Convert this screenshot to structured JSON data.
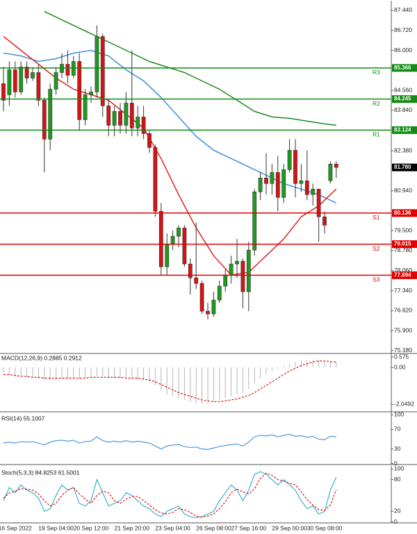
{
  "chart_data": [
    {
      "type": "candlestick",
      "categories": [
        null,
        null,
        "16 Sep 2022",
        null,
        null,
        null,
        null,
        null,
        null,
        "19 Sep 04:00",
        null,
        null,
        null,
        null,
        null,
        "20 Sep 12:00",
        null,
        null,
        null,
        null,
        null,
        null,
        "21 Sep 20:00",
        null,
        null,
        null,
        null,
        null,
        null,
        "23 Sep 04:00",
        null,
        null,
        null,
        null,
        null,
        null,
        "26 Sep 08:00",
        null,
        null,
        null,
        null,
        null,
        "27 Sep 16:00",
        null,
        null,
        null,
        null,
        null,
        null,
        "29 Sep 00:00",
        null,
        null,
        null,
        null,
        null,
        "30 Sep 08:00",
        null,
        null
      ],
      "open": [
        84.8,
        84.4,
        85.3,
        84.5,
        85.4,
        85.0,
        85.2,
        84.2,
        82.8,
        84.6,
        85.2,
        85.5,
        85.1,
        85.6,
        83.5,
        84.4,
        84.5,
        86.5,
        84.0,
        83.3,
        83.8,
        83.3,
        84.1,
        83.2,
        83.6,
        83.0,
        82.5,
        80.2,
        78.2,
        79.0,
        79.3,
        79.6,
        78.3,
        77.8,
        77.6,
        76.6,
        76.5,
        77.0,
        77.5,
        77.9,
        78.3,
        78.4,
        77.3,
        78.8,
        80.9,
        81.4,
        81.2,
        81.6,
        80.7,
        81.7,
        82.4,
        81.2,
        81.3,
        80.8,
        81.0,
        80.0,
        81.3,
        81.9
      ],
      "high": [
        85.4,
        85.6,
        85.6,
        85.6,
        85.6,
        85.4,
        85.5,
        84.3,
        84.8,
        85.4,
        85.9,
        86.0,
        85.8,
        85.9,
        84.6,
        84.7,
        86.9,
        86.6,
        84.2,
        84.0,
        84.1,
        84.5,
        86.0,
        84.0,
        84.0,
        83.1,
        82.6,
        80.5,
        79.4,
        79.5,
        79.7,
        79.7,
        78.5,
        79.8,
        77.7,
        76.9,
        77.3,
        77.7,
        78.1,
        78.6,
        79.2,
        78.5,
        79.1,
        81.0,
        81.6,
        82.3,
        81.9,
        82.2,
        81.9,
        82.8,
        82.8,
        81.9,
        82.4,
        81.2,
        81.0,
        80.2,
        82.0,
        82.0
      ],
      "low": [
        83.8,
        84.0,
        84.3,
        84.4,
        84.8,
        84.9,
        84.0,
        81.6,
        82.4,
        84.4,
        85.0,
        84.8,
        85.0,
        83.1,
        83.3,
        84.1,
        84.3,
        83.6,
        82.9,
        82.9,
        83.0,
        83.0,
        82.9,
        82.9,
        82.8,
        82.3,
        80.0,
        77.9,
        77.9,
        78.8,
        78.9,
        78.2,
        77.2,
        77.4,
        76.5,
        76.3,
        76.4,
        76.9,
        77.3,
        77.6,
        77.8,
        76.7,
        76.6,
        78.6,
        80.6,
        80.8,
        80.8,
        80.2,
        80.5,
        81.6,
        80.7,
        80.9,
        80.6,
        80.4,
        79.1,
        79.4,
        81.2,
        81.4
      ],
      "close": [
        84.2,
        85.3,
        84.5,
        85.4,
        85.0,
        85.2,
        84.2,
        82.8,
        84.6,
        85.2,
        85.5,
        85.1,
        85.6,
        83.5,
        84.4,
        84.5,
        86.5,
        84.0,
        83.3,
        83.8,
        83.3,
        84.1,
        83.2,
        83.6,
        83.0,
        82.5,
        80.2,
        78.2,
        79.0,
        79.3,
        79.6,
        78.3,
        77.8,
        77.6,
        76.6,
        76.5,
        77.0,
        77.5,
        77.9,
        78.3,
        78.4,
        77.3,
        78.8,
        80.9,
        81.4,
        81.2,
        81.6,
        80.7,
        81.7,
        82.4,
        81.2,
        81.3,
        80.8,
        81.0,
        80.0,
        79.7,
        81.9,
        81.78
      ],
      "up_color": "#1f9a1f",
      "down_color": "#d41414",
      "ylim": [
        75.1,
        87.69
      ],
      "yticks": [
        {
          "value": 87.44,
          "label": "87.440"
        },
        {
          "value": 86.72,
          "label": "86.720"
        },
        {
          "value": 86.0,
          "label": "86.000"
        },
        {
          "value": 84.56,
          "label": "84.560"
        },
        {
          "value": 83.84,
          "label": "83.840"
        },
        {
          "value": 82.38,
          "label": "82.380"
        },
        {
          "value": 80.94,
          "label": "80.940"
        },
        {
          "value": 79.5,
          "label": "79.500"
        },
        {
          "value": 78.78,
          "label": "78.780"
        },
        {
          "value": 78.06,
          "label": "78.060"
        },
        {
          "value": 77.34,
          "label": "77.340"
        },
        {
          "value": 76.62,
          "label": "76.620"
        },
        {
          "value": 75.9,
          "label": "75.900"
        },
        {
          "value": 75.18,
          "label": "75.180"
        }
      ],
      "levels": [
        {
          "name": "R3",
          "value": 85.366,
          "color": "#138a13"
        },
        {
          "name": "R2",
          "value": 84.245,
          "color": "#138a13"
        },
        {
          "name": "R1",
          "value": 83.124,
          "color": "#138a13"
        },
        {
          "name": "S1",
          "value": 80.136,
          "color": "#e00000"
        },
        {
          "name": "S2",
          "value": 79.015,
          "color": "#e00000"
        },
        {
          "name": "S3",
          "value": 77.894,
          "color": "#e00000"
        }
      ],
      "last": {
        "value": 81.78,
        "label": "81.780",
        "color": "#000000"
      },
      "moving_averages": [
        {
          "color": "#1a8a1a",
          "x": [
            7,
            10,
            13,
            16,
            19,
            22,
            25,
            28,
            31,
            34,
            37,
            40,
            43,
            46,
            49,
            52,
            55,
            57
          ],
          "values": [
            87.4,
            87.1,
            86.8,
            86.5,
            86.2,
            85.9,
            85.6,
            85.4,
            85.2,
            84.9,
            84.6,
            84.2,
            83.8,
            83.6,
            83.55,
            83.45,
            83.35,
            83.3
          ]
        },
        {
          "color": "#3a8fe0",
          "x": [
            0,
            3,
            6,
            9,
            12,
            15,
            18,
            21,
            24,
            27,
            30,
            33,
            36,
            39,
            42,
            45,
            48,
            51,
            54,
            57
          ],
          "values": [
            85.9,
            85.8,
            85.6,
            85.7,
            85.9,
            86.0,
            85.8,
            85.3,
            84.9,
            84.3,
            83.6,
            82.9,
            82.4,
            82.1,
            81.8,
            81.5,
            81.2,
            81.0,
            80.8,
            80.5
          ]
        },
        {
          "color": "#e02020",
          "x": [
            0,
            3,
            6,
            9,
            12,
            15,
            18,
            21,
            24,
            27,
            30,
            33,
            36,
            39,
            42,
            45,
            48,
            51,
            54,
            57
          ],
          "values": [
            86.5,
            86.0,
            85.5,
            85.0,
            84.6,
            84.4,
            84.2,
            83.7,
            83.2,
            82.1,
            80.8,
            79.6,
            78.6,
            77.9,
            78.0,
            78.6,
            79.2,
            80.0,
            80.4,
            81.0
          ]
        }
      ]
    },
    {
      "type": "indicator",
      "title": "MACD(12,26,9) 0.2885 0.2912",
      "ylim": [
        -2.42,
        0.73
      ],
      "yticks": [
        0.575,
        {
          "value": 0,
          "label": "0.00"
        },
        -2.0492
      ],
      "series": [
        {
          "kind": "bar",
          "color": "#b4b4b4",
          "values": [
            -0.3,
            -0.4,
            -0.5,
            -0.5,
            -0.6,
            -0.6,
            -0.6,
            -0.7,
            -0.7,
            -0.7,
            -0.6,
            -0.6,
            -0.6,
            -0.6,
            -0.6,
            -0.5,
            -0.5,
            -0.5,
            -0.6,
            -0.6,
            -0.6,
            -0.6,
            -0.6,
            -0.7,
            -0.7,
            -0.8,
            -1.0,
            -1.3,
            -1.5,
            -1.6,
            -1.7,
            -1.8,
            -1.9,
            -2.0,
            -2.0,
            -2.0,
            -1.9,
            -1.8,
            -1.7,
            -1.6,
            -1.5,
            -1.4,
            -1.2,
            -0.9,
            -0.6,
            -0.4,
            -0.2,
            -0.1,
            0.1,
            0.2,
            0.3,
            0.4,
            0.4,
            0.4,
            0.4,
            0.3,
            0.3,
            0.2885
          ]
        },
        {
          "kind": "line",
          "dash": true,
          "color": "#e00000",
          "values": [
            -0.4,
            -0.4,
            -0.45,
            -0.5,
            -0.5,
            -0.55,
            -0.55,
            -0.6,
            -0.6,
            -0.6,
            -0.6,
            -0.6,
            -0.6,
            -0.6,
            -0.6,
            -0.55,
            -0.55,
            -0.55,
            -0.55,
            -0.55,
            -0.55,
            -0.6,
            -0.6,
            -0.6,
            -0.65,
            -0.7,
            -0.8,
            -0.95,
            -1.1,
            -1.25,
            -1.4,
            -1.5,
            -1.6,
            -1.7,
            -1.8,
            -1.85,
            -1.9,
            -1.9,
            -1.85,
            -1.8,
            -1.75,
            -1.65,
            -1.55,
            -1.4,
            -1.2,
            -1.0,
            -0.8,
            -0.6,
            -0.4,
            -0.2,
            -0.05,
            0.1,
            0.2,
            0.3,
            0.35,
            0.35,
            0.32,
            0.2912
          ]
        }
      ]
    },
    {
      "type": "indicator",
      "title": "RSI(14) 55.1007",
      "ylim": [
        -0.5,
        100.5
      ],
      "yticks": [
        100,
        70,
        30,
        0
      ],
      "series": [
        {
          "kind": "line",
          "color": "#3a8fd9",
          "values": [
            42,
            44,
            42,
            45,
            44,
            45,
            42,
            38,
            44,
            47,
            48,
            46,
            48,
            42,
            45,
            46,
            55,
            47,
            44,
            46,
            44,
            47,
            44,
            46,
            44,
            42,
            36,
            30,
            36,
            38,
            39,
            35,
            33,
            34,
            30,
            29,
            32,
            35,
            37,
            39,
            40,
            36,
            44,
            55,
            58,
            57,
            59,
            55,
            58,
            60,
            56,
            57,
            54,
            56,
            50,
            49,
            56,
            55.1007
          ]
        }
      ]
    },
    {
      "type": "indicator",
      "title": "Stoch(5,3,3) 84.8253 61.5001",
      "ylim": [
        -0.5,
        100.5
      ],
      "yticks": [
        100,
        80,
        20,
        0
      ],
      "series": [
        {
          "kind": "line",
          "color": "#22aacc",
          "values": [
            40,
            65,
            55,
            70,
            60,
            55,
            45,
            20,
            25,
            50,
            70,
            60,
            65,
            35,
            30,
            40,
            80,
            55,
            30,
            35,
            40,
            55,
            50,
            40,
            30,
            25,
            15,
            10,
            20,
            25,
            30,
            15,
            10,
            8,
            10,
            15,
            20,
            40,
            55,
            70,
            60,
            40,
            60,
            90,
            95,
            90,
            80,
            70,
            80,
            70,
            60,
            40,
            25,
            30,
            15,
            20,
            60,
            84.8253
          ]
        },
        {
          "kind": "line",
          "dash": true,
          "color": "#e00000",
          "values": [
            45,
            55,
            58,
            63,
            62,
            60,
            53,
            40,
            30,
            35,
            50,
            60,
            65,
            53,
            43,
            35,
            50,
            58,
            55,
            40,
            35,
            43,
            48,
            48,
            40,
            32,
            23,
            17,
            15,
            18,
            25,
            23,
            18,
            11,
            9,
            11,
            15,
            25,
            38,
            55,
            62,
            57,
            53,
            63,
            82,
            92,
            88,
            80,
            77,
            73,
            70,
            57,
            42,
            32,
            23,
            22,
            32,
            61.5001
          ]
        }
      ]
    }
  ]
}
